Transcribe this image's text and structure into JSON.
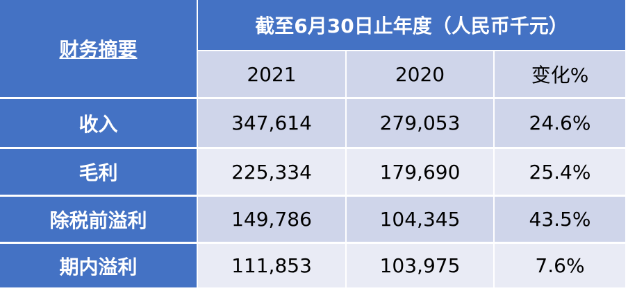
{
  "header": {
    "title": "财务摘要",
    "period": "截至6月30日止年度（人民币千元）",
    "columns": [
      "2021",
      "2020",
      "变化%"
    ]
  },
  "table": {
    "rows": [
      [
        "收入",
        "347,614",
        "279,053",
        "24.6%"
      ],
      [
        "毛利",
        "225,334",
        "179,690",
        "25.4%"
      ],
      [
        "除税前溢利",
        "149,786",
        "104,345",
        "43.5%"
      ],
      [
        "期内溢利",
        "111,853",
        "103,975",
        "7.6%"
      ]
    ]
  }
}
